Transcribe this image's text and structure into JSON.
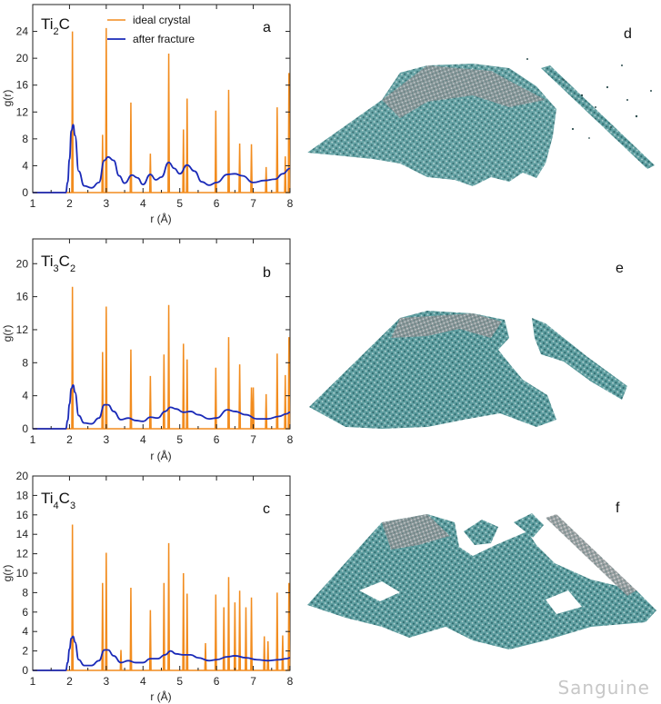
{
  "colors": {
    "ideal": "#f28c1e",
    "fracture": "#1a2ab8",
    "axis": "#222222",
    "mesh_dark": "#2f6f73",
    "mesh_mid": "#4f9a9c",
    "mesh_light": "#a9c9c9",
    "mesh_grey": "#8c8f90"
  },
  "legend": {
    "ideal_label": "ideal crystal",
    "fracture_label": "after fracture"
  },
  "chart_data": [
    {
      "type": "line",
      "panel_letter": "a",
      "title_main": "Ti",
      "title_sub1": "2",
      "title_main2": "C",
      "title_sub2": "",
      "xlabel": "r (Å)",
      "ylabel": "g(r)",
      "xlim": [
        1,
        8
      ],
      "ylim": [
        0,
        28
      ],
      "xticks": [
        1,
        2,
        3,
        4,
        5,
        6,
        7,
        8
      ],
      "yticks": [
        0,
        4,
        8,
        12,
        16,
        20,
        24
      ],
      "series": [
        {
          "name": "ideal crystal",
          "kind": "peaks",
          "peaks": [
            [
              2.08,
              24
            ],
            [
              2.9,
              8.6
            ],
            [
              3.0,
              24.5
            ],
            [
              3.67,
              13.4
            ],
            [
              4.2,
              5.8
            ],
            [
              4.7,
              20.7
            ],
            [
              5.1,
              9.4
            ],
            [
              5.2,
              14
            ],
            [
              5.98,
              12.2
            ],
            [
              6.33,
              15.3
            ],
            [
              6.63,
              7.3
            ],
            [
              6.95,
              7.2
            ],
            [
              7.35,
              3.8
            ],
            [
              7.65,
              12.7
            ],
            [
              7.87,
              5.4
            ],
            [
              7.97,
              17.8
            ]
          ]
        },
        {
          "name": "after fracture",
          "kind": "curve",
          "x": [
            1.0,
            1.9,
            1.95,
            2.0,
            2.05,
            2.1,
            2.15,
            2.25,
            2.4,
            2.6,
            2.8,
            2.95,
            3.05,
            3.2,
            3.35,
            3.5,
            3.7,
            3.85,
            4.0,
            4.2,
            4.35,
            4.5,
            4.7,
            4.85,
            5.0,
            5.2,
            5.4,
            5.6,
            5.8,
            6.0,
            6.3,
            6.5,
            6.7,
            7.0,
            7.3,
            7.6,
            7.8,
            8.0
          ],
          "y": [
            0,
            0,
            1.5,
            5,
            9.2,
            10.1,
            8.5,
            3.2,
            1.0,
            0.7,
            1.5,
            4.8,
            5.3,
            4.8,
            2.5,
            1.4,
            2.6,
            2.2,
            1.2,
            2.7,
            1.9,
            2.3,
            4.5,
            3.6,
            2.8,
            4.1,
            3.2,
            1.6,
            1.1,
            1.5,
            2.7,
            2.8,
            2.5,
            1.5,
            1.8,
            2.0,
            2.8,
            3.6
          ]
        }
      ]
    },
    {
      "type": "line",
      "panel_letter": "b",
      "title_main": "Ti",
      "title_sub1": "3",
      "title_main2": "C",
      "title_sub2": "2",
      "xlabel": "r (Å)",
      "ylabel": "g(r)",
      "xlim": [
        1,
        8
      ],
      "ylim": [
        0,
        23
      ],
      "xticks": [
        1,
        2,
        3,
        4,
        5,
        6,
        7,
        8
      ],
      "yticks": [
        0,
        4,
        8,
        12,
        16,
        20
      ],
      "series": [
        {
          "name": "ideal crystal",
          "kind": "peaks",
          "peaks": [
            [
              2.08,
              17.2
            ],
            [
              2.9,
              9.3
            ],
            [
              3.0,
              14.8
            ],
            [
              3.67,
              9.6
            ],
            [
              4.2,
              6.4
            ],
            [
              4.57,
              9.0
            ],
            [
              4.7,
              15.0
            ],
            [
              5.1,
              10.3
            ],
            [
              5.2,
              8.4
            ],
            [
              5.98,
              7.4
            ],
            [
              6.33,
              11.1
            ],
            [
              6.63,
              7.8
            ],
            [
              6.95,
              5.0
            ],
            [
              7.0,
              5.0
            ],
            [
              7.35,
              4.2
            ],
            [
              7.65,
              9.1
            ],
            [
              7.87,
              6.5
            ],
            [
              7.97,
              11.1
            ]
          ]
        },
        {
          "name": "after fracture",
          "kind": "curve",
          "x": [
            1.0,
            1.9,
            1.95,
            2.0,
            2.05,
            2.1,
            2.15,
            2.25,
            2.4,
            2.6,
            2.8,
            2.95,
            3.05,
            3.2,
            3.4,
            3.6,
            3.8,
            4.0,
            4.2,
            4.4,
            4.6,
            4.75,
            4.9,
            5.1,
            5.3,
            5.5,
            5.8,
            6.0,
            6.3,
            6.5,
            6.8,
            7.1,
            7.4,
            7.7,
            7.9,
            8.0
          ],
          "y": [
            0,
            0,
            1.0,
            3.0,
            4.9,
            5.3,
            4.4,
            1.6,
            0.7,
            0.6,
            1.3,
            2.9,
            2.9,
            2.1,
            1.1,
            1.3,
            1.0,
            0.9,
            1.4,
            1.3,
            2.1,
            2.6,
            2.4,
            2.0,
            2.1,
            1.7,
            1.2,
            1.3,
            2.3,
            2.1,
            1.7,
            1.2,
            1.2,
            1.5,
            1.8,
            2.0
          ]
        }
      ]
    },
    {
      "type": "line",
      "panel_letter": "c",
      "title_main": "Ti",
      "title_sub1": "4",
      "title_main2": "C",
      "title_sub2": "3",
      "xlabel": "r (Å)",
      "ylabel": "g(r)",
      "xlim": [
        1,
        8
      ],
      "ylim": [
        0,
        20
      ],
      "xticks": [
        1,
        2,
        3,
        4,
        5,
        6,
        7,
        8
      ],
      "yticks": [
        0,
        2,
        4,
        6,
        8,
        10,
        12,
        14,
        16,
        18,
        20
      ],
      "series": [
        {
          "name": "ideal crystal",
          "kind": "peaks",
          "peaks": [
            [
              2.08,
              15.0
            ],
            [
              2.9,
              9.0
            ],
            [
              3.0,
              12.1
            ],
            [
              3.4,
              2.1
            ],
            [
              3.67,
              8.5
            ],
            [
              4.2,
              6.2
            ],
            [
              4.57,
              9.0
            ],
            [
              4.7,
              13.1
            ],
            [
              5.1,
              10.0
            ],
            [
              5.2,
              7.9
            ],
            [
              5.7,
              2.8
            ],
            [
              5.98,
              7.8
            ],
            [
              6.2,
              6.5
            ],
            [
              6.33,
              9.6
            ],
            [
              6.5,
              7.0
            ],
            [
              6.63,
              8.2
            ],
            [
              6.8,
              6.5
            ],
            [
              6.95,
              7.5
            ],
            [
              7.3,
              3.5
            ],
            [
              7.4,
              3.0
            ],
            [
              7.65,
              8.0
            ],
            [
              7.8,
              3.6
            ],
            [
              7.97,
              9.0
            ]
          ]
        },
        {
          "name": "after fracture",
          "kind": "curve",
          "x": [
            1.0,
            1.9,
            1.95,
            2.0,
            2.05,
            2.1,
            2.15,
            2.25,
            2.4,
            2.6,
            2.8,
            2.95,
            3.05,
            3.2,
            3.4,
            3.6,
            3.8,
            4.0,
            4.2,
            4.4,
            4.6,
            4.75,
            4.9,
            5.1,
            5.3,
            5.5,
            5.8,
            6.0,
            6.3,
            6.5,
            6.8,
            7.1,
            7.4,
            7.7,
            7.9,
            8.0
          ],
          "y": [
            0,
            0,
            0.8,
            2.2,
            3.3,
            3.5,
            2.9,
            1.1,
            0.5,
            0.5,
            1.0,
            2.1,
            2.1,
            1.5,
            0.8,
            1.0,
            0.8,
            0.8,
            1.2,
            1.2,
            1.6,
            2.0,
            1.7,
            1.6,
            1.6,
            1.3,
            1.0,
            1.1,
            1.4,
            1.5,
            1.3,
            1.1,
            1.0,
            1.1,
            1.2,
            1.3
          ]
        }
      ]
    }
  ],
  "structures": [
    {
      "letter": "d"
    },
    {
      "letter": "e"
    },
    {
      "letter": "f"
    }
  ],
  "watermark": "Sanguine"
}
